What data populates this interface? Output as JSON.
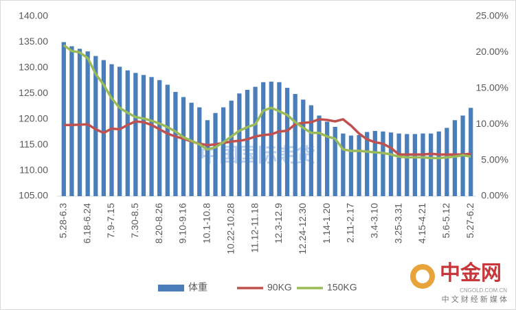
{
  "chart_data": {
    "type": "bar_line",
    "categories": [
      "5.28-6.3",
      null,
      null,
      "6.18-6.24",
      null,
      null,
      "7.9-7.15",
      null,
      null,
      "7.30-8.5",
      null,
      null,
      "8.20-8.26",
      null,
      null,
      "9.10-9.16",
      null,
      null,
      "10.1-10.8",
      null,
      null,
      "10.22-10.28",
      null,
      null,
      "11.12-11.18",
      null,
      null,
      "12.3-12.9",
      null,
      null,
      "12.24-12.30",
      null,
      null,
      "1.14-1.20",
      null,
      null,
      "2.11-2.17",
      null,
      null,
      "3.4-3.10",
      null,
      null,
      "3.25-3.31",
      null,
      null,
      "4.15-4.21",
      null,
      null,
      "5.6-5.12",
      null,
      null,
      "5.27-6.2"
    ],
    "series": [
      {
        "name": "体重",
        "type": "bar",
        "color": "#4a7ebb",
        "values": [
          135,
          134.2,
          133.7,
          133.2,
          132.3,
          131.5,
          130.7,
          130.2,
          129.5,
          129,
          128.6,
          128.2,
          127.6,
          126.7,
          125.3,
          124.3,
          123.2,
          122.3,
          119.8,
          121.2,
          122.3,
          123.6,
          125,
          125.7,
          126.3,
          127.2,
          127.3,
          127.2,
          126.1,
          124.9,
          123.8,
          122.7,
          120.7,
          119.5,
          118.5,
          117.2,
          116.8,
          116.9,
          117.5,
          117.7,
          117.6,
          117.4,
          117.2,
          117.1,
          117.1,
          117.2,
          117.2,
          117.6,
          118.3,
          119.8,
          120.7,
          122.2
        ]
      },
      {
        "name": "90KG",
        "type": "line",
        "axis": "y2",
        "color": "#c0504d",
        "values": [
          9.9,
          9.9,
          9.95,
          10.0,
          9.3,
          8.8,
          9.4,
          9.3,
          9.9,
          10.4,
          10.3,
          9.9,
          9.3,
          8.7,
          8.3,
          8.0,
          7.6,
          7.3,
          7.1,
          7.2,
          7.4,
          7.6,
          7.7,
          7.9,
          8.3,
          8.5,
          8.6,
          9.0,
          9.1,
          10.0,
          10.2,
          10.3,
          10.7,
          10.6,
          10.4,
          10.7,
          9.8,
          8.7,
          7.9,
          7.5,
          7.3,
          6.7,
          5.8,
          5.8,
          5.8,
          5.8,
          5.9,
          5.8,
          5.8,
          5.8,
          5.8,
          5.9
        ]
      },
      {
        "name": "150KG",
        "type": "line",
        "axis": "y2",
        "color": "#9bbb59",
        "values": [
          21.0,
          20.2,
          20.0,
          19.2,
          17.0,
          15.5,
          13.6,
          12.3,
          11.6,
          11.0,
          10.8,
          10.5,
          10.1,
          9.6,
          9.0,
          8.2,
          7.7,
          7.2,
          6.5,
          6.8,
          7.5,
          8.3,
          9.1,
          9.6,
          10.0,
          11.9,
          12.3,
          11.8,
          11.3,
          10.3,
          9.5,
          8.8,
          8.8,
          8.3,
          8.0,
          6.5,
          6.3,
          6.3,
          6.2,
          6.1,
          6.0,
          5.8,
          5.5,
          5.4,
          5.4,
          5.4,
          5.3,
          5.3,
          5.4,
          5.5,
          5.7,
          5.5
        ]
      }
    ],
    "ylim": [
      105,
      140
    ],
    "yticks": [
      {
        "value": 105,
        "label": "105.00"
      },
      {
        "value": 110,
        "label": "110.00"
      },
      {
        "value": 115,
        "label": "115.00"
      },
      {
        "value": 120,
        "label": "120.00"
      },
      {
        "value": 125,
        "label": "125.00"
      },
      {
        "value": 130,
        "label": "130.00"
      },
      {
        "value": 135,
        "label": "135.00"
      },
      {
        "value": 140,
        "label": "140.00"
      }
    ],
    "y2lim": [
      0,
      25
    ],
    "y2ticks": [
      {
        "value": 0,
        "label": "0.00%"
      },
      {
        "value": 5,
        "label": "5.00%"
      },
      {
        "value": 10,
        "label": "10.00%"
      },
      {
        "value": 15,
        "label": "15.00%"
      },
      {
        "value": 20,
        "label": "20.00%"
      },
      {
        "value": 25,
        "label": "25.00%"
      }
    ],
    "legend": "bottom",
    "watermark": "中国国际期货",
    "logo": {
      "name": "中金网",
      "domain": "CNGOLD.COM.CN",
      "slogan": "中 文 财 经 新 媒 体"
    }
  }
}
